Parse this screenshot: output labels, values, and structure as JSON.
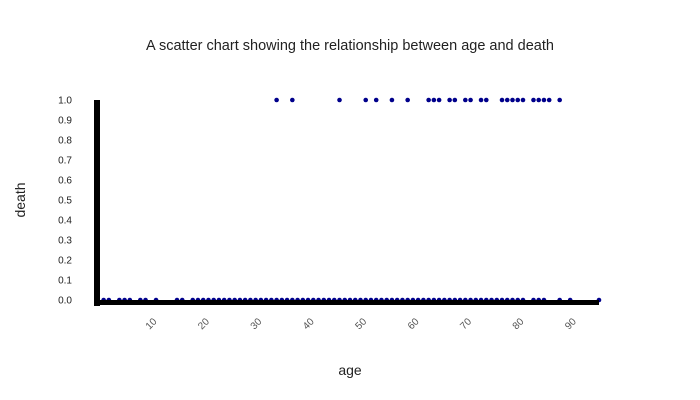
{
  "chart_data": {
    "type": "scatter",
    "title": "A scatter chart showing the relationship between age and death",
    "xlabel": "age",
    "ylabel": "death",
    "xlim": [
      0,
      95
    ],
    "ylim": [
      0,
      1
    ],
    "x_ticks": [
      "10",
      "20",
      "30",
      "40",
      "50",
      "60",
      "70",
      "80",
      "90"
    ],
    "y_ticks": [
      "0.0",
      "0.1",
      "0.2",
      "0.3",
      "0.4",
      "0.5",
      "0.6",
      "0.7",
      "0.8",
      "0.9",
      "1.0"
    ],
    "grid": false,
    "legend": "none",
    "marker_color": "#00008b",
    "axis_color": "#000000",
    "series": [
      {
        "x": [
          33.5,
          36.5,
          45.5,
          50.5,
          52.5,
          55.5,
          58.5,
          62.5,
          63.5,
          64.5,
          66.5,
          67.5,
          69.5,
          70.5,
          72.5,
          73.5,
          76.5,
          77.5,
          78.5,
          79.5,
          80.5,
          82.5,
          83.5,
          84.5,
          85.5,
          87.5,
          0.5,
          1.5,
          3.5,
          4.5,
          5.5,
          7.5,
          8.5,
          10.5,
          14.5,
          15.5,
          17.5,
          18.5,
          19.5,
          20.5,
          21.5,
          22.5,
          23.5,
          24.5,
          25.5,
          26.5,
          27.5,
          28.5,
          29.5,
          30.5,
          31.5,
          32.5,
          33.5,
          34.5,
          35.5,
          36.5,
          37.5,
          38.5,
          39.5,
          40.5,
          41.5,
          42.5,
          43.5,
          44.5,
          45.5,
          46.5,
          47.5,
          48.5,
          49.5,
          50.5,
          51.5,
          52.5,
          53.5,
          54.5,
          55.5,
          56.5,
          57.5,
          58.5,
          59.5,
          60.5,
          61.5,
          62.5,
          63.5,
          64.5,
          65.5,
          66.5,
          67.5,
          68.5,
          69.5,
          70.5,
          71.5,
          72.5,
          73.5,
          74.5,
          75.5,
          76.5,
          77.5,
          78.5,
          79.5,
          80.5,
          82.5,
          83.5,
          84.5,
          87.5,
          89.5,
          95
        ],
        "y": [
          1,
          1,
          1,
          1,
          1,
          1,
          1,
          1,
          1,
          1,
          1,
          1,
          1,
          1,
          1,
          1,
          1,
          1,
          1,
          1,
          1,
          1,
          1,
          1,
          1,
          1,
          0,
          0,
          0,
          0,
          0,
          0,
          0,
          0,
          0,
          0,
          0,
          0,
          0,
          0,
          0,
          0,
          0,
          0,
          0,
          0,
          0,
          0,
          0,
          0,
          0,
          0,
          0,
          0,
          0,
          0,
          0,
          0,
          0,
          0,
          0,
          0,
          0,
          0,
          0,
          0,
          0,
          0,
          0,
          0,
          0,
          0,
          0,
          0,
          0,
          0,
          0,
          0,
          0,
          0,
          0,
          0,
          0,
          0,
          0,
          0,
          0,
          0,
          0,
          0,
          0,
          0,
          0,
          0,
          0,
          0,
          0,
          0,
          0,
          0,
          0,
          0,
          0,
          0,
          0,
          0
        ]
      }
    ]
  }
}
